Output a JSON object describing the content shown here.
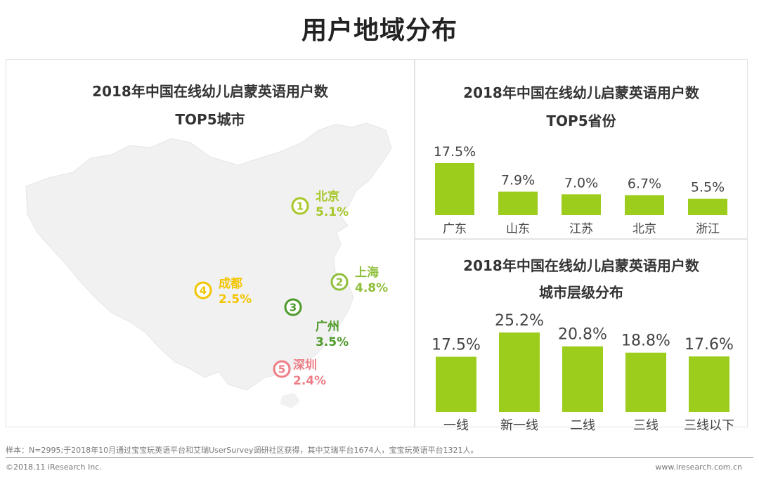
{
  "page": {
    "title": "用户地域分布"
  },
  "map_panel": {
    "title_line1": "2018年中国在线幼儿启蒙英语用户数",
    "title_line2": "TOP5城市",
    "cities": [
      {
        "rank": "1",
        "name": "北京",
        "value": "5.1%",
        "color": "#a8c82a"
      },
      {
        "rank": "2",
        "name": "上海",
        "value": "4.8%",
        "color": "#8fbf3a"
      },
      {
        "rank": "3",
        "name": "广州",
        "value": "3.5%",
        "color": "#4d9a2a"
      },
      {
        "rank": "4",
        "name": "成都",
        "value": "2.5%",
        "color": "#f2c500"
      },
      {
        "rank": "5",
        "name": "深圳",
        "value": "2.4%",
        "color": "#ee7d86"
      }
    ]
  },
  "chart_data": [
    {
      "type": "bar",
      "title": "2018年中国在线幼儿启蒙英语用户数 TOP5省份",
      "title_line1": "2018年中国在线幼儿启蒙英语用户数",
      "title_line2": "TOP5省份",
      "categories": [
        "广东",
        "山东",
        "江苏",
        "北京",
        "浙江"
      ],
      "values": [
        17.5,
        7.9,
        7.0,
        6.7,
        5.5
      ],
      "labels": [
        "17.5%",
        "7.9%",
        "7.0%",
        "6.7%",
        "5.5%"
      ],
      "ylim": [
        0,
        17.5
      ],
      "bar_color": "#9ccc1c"
    },
    {
      "type": "bar",
      "title": "2018年中国在线幼儿启蒙英语用户数 城市层级分布",
      "title_line1": "2018年中国在线幼儿启蒙英语用户数",
      "title_line2": "城市层级分布",
      "categories": [
        "一线",
        "新一线",
        "二线",
        "三线",
        "三线以下"
      ],
      "values": [
        17.5,
        25.2,
        20.8,
        18.8,
        17.6
      ],
      "labels": [
        "17.5%",
        "25.2%",
        "20.8%",
        "18.8%",
        "17.6%"
      ],
      "ylim": [
        0,
        25.2
      ],
      "bar_color": "#9ccc1c"
    }
  ],
  "footnote": "样本：N=2995;于2018年10月通过宝宝玩英语平台和艾瑞UserSurvey调研社区获得，其中艾瑞平台1674人，宝宝玩英语平台1321人。",
  "footer": {
    "copyright": "©2018.11 iResearch Inc.",
    "website": "www.iresearch.com.cn"
  }
}
